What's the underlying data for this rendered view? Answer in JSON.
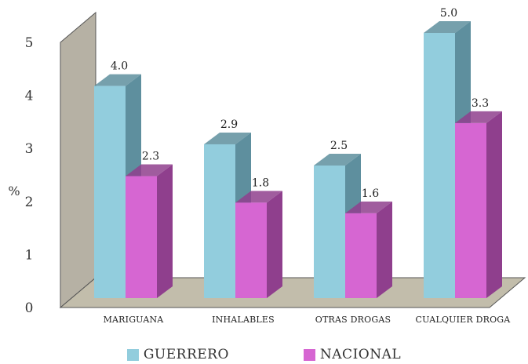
{
  "chart_data": {
    "type": "bar",
    "categories": [
      "MARIGUANA",
      "INHALABLES",
      "OTRAS DROGAS",
      "CUALQUIER DROGA"
    ],
    "series": [
      {
        "name": "GUERRERO",
        "values": [
          4.0,
          2.9,
          2.5,
          5.0
        ],
        "color": "#92cddd",
        "side": "#5e8f9e"
      },
      {
        "name": "NACIONAL",
        "values": [
          2.3,
          1.8,
          1.6,
          3.3
        ],
        "color": "#d666d2",
        "side": "#8f3f8d"
      }
    ],
    "data_labels": [
      [
        "4.0",
        "2.9",
        "2.5",
        "5.0"
      ],
      [
        "2.3",
        "1.8",
        "1.6",
        "3.3"
      ]
    ],
    "yticks": [
      "0",
      "1",
      "2",
      "3",
      "4",
      "5"
    ],
    "ylabel": "%",
    "ylim": [
      0,
      5
    ],
    "xlabel": "",
    "title": "",
    "legend_position": "bottom",
    "grid": false,
    "style": "3d-column",
    "wall_color": "#b6b1a4",
    "floor_color": "#c2bdab"
  }
}
